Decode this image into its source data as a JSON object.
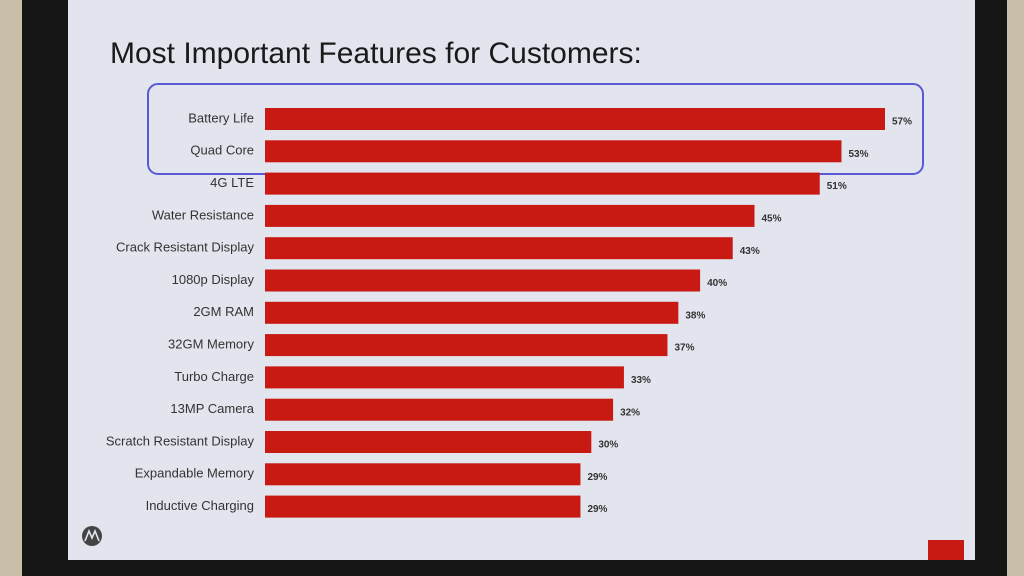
{
  "chart_data": {
    "type": "bar",
    "orientation": "horizontal",
    "title": "Most Important Features for Customers:",
    "categories": [
      "Battery Life",
      "Quad Core",
      "4G LTE",
      "Water Resistance",
      "Crack Resistant Display",
      "1080p Display",
      "2GM RAM",
      "32GM Memory",
      "Turbo Charge",
      "13MP Camera",
      "Scratch Resistant Display",
      "Expandable Memory",
      "Inductive Charging"
    ],
    "values": [
      57,
      53,
      51,
      45,
      43,
      40,
      38,
      37,
      33,
      32,
      30,
      29,
      29
    ],
    "value_labels": [
      "57%",
      "53%",
      "51%",
      "45%",
      "43%",
      "40%",
      "38%",
      "37%",
      "33%",
      "32%",
      "30%",
      "29%",
      "29%"
    ],
    "color": "#c81912"
  }
}
